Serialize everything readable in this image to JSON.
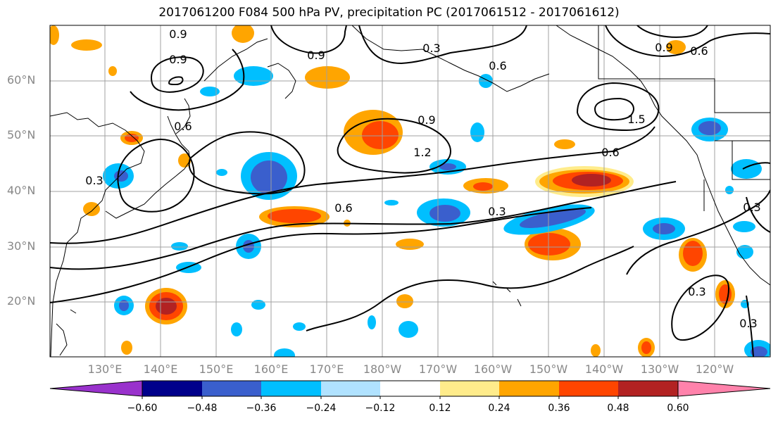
{
  "title": "2017061200 F084 500 hPa PV, precipitation PC (2017061512 - 2017061612)",
  "latitude_labels": [
    "60°N",
    "50°N",
    "40°N",
    "30°N",
    "20°N"
  ],
  "longitude_labels": [
    "130°E",
    "140°E",
    "150°E",
    "160°E",
    "170°E",
    "180°W",
    "170°W",
    "160°W",
    "150°W",
    "140°W",
    "130°W",
    "120°W"
  ],
  "contour_labels": [
    "0.9",
    "0.9",
    "0.9",
    "0.3",
    "0.9",
    "0.6",
    "0.6",
    "1.5",
    "0.9",
    "1.2",
    "0.6",
    "0.3",
    "0.6",
    "0.3",
    "0.6",
    "0.3",
    "0.3",
    "0.3"
  ],
  "colorbar": {
    "ticks": [
      "−0.60",
      "−0.48",
      "−0.36",
      "−0.24",
      "−0.12",
      "0.12",
      "0.24",
      "0.36",
      "0.48",
      "0.60"
    ],
    "colors": [
      "#9932cc",
      "#00008b",
      "#3a5fcd",
      "#00bfff",
      "#b0e2ff",
      "#ffffff",
      "#ffec8b",
      "#ffa500",
      "#ff4500",
      "#b22222",
      "#ff82ab"
    ]
  },
  "colors": {
    "grid": "#a0a0a0",
    "coastline": "#000000",
    "axis_label": "#888888"
  }
}
